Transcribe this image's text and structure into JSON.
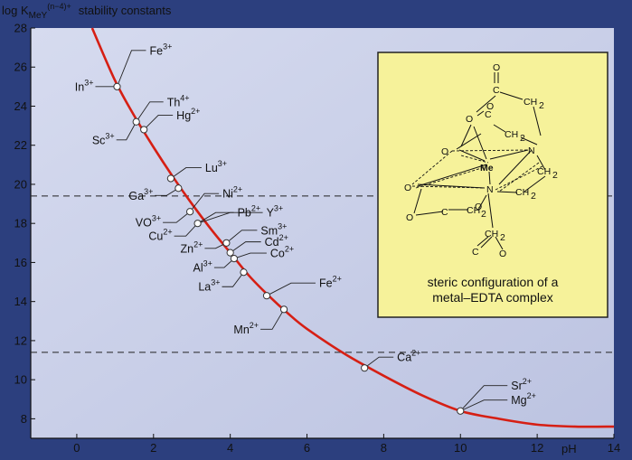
{
  "chart_data": {
    "type": "line",
    "title": "",
    "ylabel_main": "log K",
    "ylabel_sub": "MeY",
    "ylabel_sup": "(n−4)+",
    "ylabel_rest": "stability constants",
    "xlabel": "pH",
    "xlim": [
      -1.2,
      14
    ],
    "ylim": [
      7,
      28
    ],
    "x_ticks": [
      0,
      2,
      4,
      6,
      8,
      10,
      12,
      14
    ],
    "y_ticks": [
      8,
      10,
      12,
      14,
      16,
      18,
      20,
      22,
      24,
      26,
      28
    ],
    "reference_lines": [
      19.4,
      11.4
    ],
    "curve": {
      "x": [
        0.4,
        1.0,
        1.5,
        2.0,
        2.5,
        3.0,
        3.5,
        4.0,
        4.5,
        5.0,
        5.5,
        6.0,
        7.0,
        8.0,
        9.0,
        10.0,
        11.0,
        12.0,
        13.0,
        14.0
      ],
      "y": [
        28.0,
        25.3,
        23.5,
        21.9,
        20.4,
        19.0,
        17.7,
        16.5,
        15.3,
        14.3,
        13.4,
        12.6,
        11.3,
        10.2,
        9.2,
        8.4,
        8.0,
        7.7,
        7.6,
        7.6
      ]
    },
    "points": [
      {
        "label": "Fe",
        "charge": "3+",
        "x": 1.05,
        "y": 25.0
      },
      {
        "label": "In",
        "charge": "3+",
        "x": 1.05,
        "y": 25.0
      },
      {
        "label": "Th",
        "charge": "4+",
        "x": 1.55,
        "y": 23.2
      },
      {
        "label": "Hg",
        "charge": "2+",
        "x": 1.75,
        "y": 22.8
      },
      {
        "label": "Sc",
        "charge": "3+",
        "x": 1.55,
        "y": 23.2
      },
      {
        "label": "Lu",
        "charge": "3+",
        "x": 2.45,
        "y": 20.3
      },
      {
        "label": "Ga",
        "charge": "3+",
        "x": 2.65,
        "y": 19.8
      },
      {
        "label": "Ni",
        "charge": "2+",
        "x": 2.95,
        "y": 18.6
      },
      {
        "label": "Pb",
        "charge": "2+",
        "x": 3.15,
        "y": 18.0
      },
      {
        "label": "Y",
        "charge": "3+",
        "x": 3.15,
        "y": 18.0
      },
      {
        "label": "VO",
        "charge": "3+",
        "x": 2.95,
        "y": 18.6
      },
      {
        "label": "Cu",
        "charge": "2+",
        "x": 3.15,
        "y": 18.0
      },
      {
        "label": "Sm",
        "charge": "3+",
        "x": 3.9,
        "y": 17.0
      },
      {
        "label": "Cd",
        "charge": "2+",
        "x": 4.0,
        "y": 16.5
      },
      {
        "label": "Zn",
        "charge": "2+",
        "x": 3.9,
        "y": 17.0
      },
      {
        "label": "Co",
        "charge": "2+",
        "x": 4.1,
        "y": 16.2
      },
      {
        "label": "Al",
        "charge": "3+",
        "x": 4.1,
        "y": 16.2
      },
      {
        "label": "La",
        "charge": "3+",
        "x": 4.35,
        "y": 15.5
      },
      {
        "label": "Fe",
        "charge": "2+",
        "x": 4.95,
        "y": 14.3
      },
      {
        "label": "Mn",
        "charge": "2+",
        "x": 5.4,
        "y": 13.6
      },
      {
        "label": "Ca",
        "charge": "2+",
        "x": 7.5,
        "y": 10.6
      },
      {
        "label": "Sr",
        "charge": "2+",
        "x": 10.0,
        "y": 8.4
      },
      {
        "label": "Mg",
        "charge": "2+",
        "x": 10.0,
        "y": 8.4
      }
    ],
    "label_sides": {
      "left": [
        "In",
        "Sc",
        "Ga",
        "VO",
        "Cu",
        "Zn",
        "Al",
        "La",
        "Mn"
      ]
    },
    "colors": {
      "curve": "#d61f14",
      "background": "#2c3f7e",
      "plot_area": "#c9cfe8",
      "inset": "#f6f29a",
      "inset_border": "#222222",
      "text": "#111111"
    }
  },
  "inset": {
    "caption_line1": "steric configuration of a",
    "caption_line2": "metal–EDTA complex",
    "atoms": {
      "me": "Me",
      "n1": "N",
      "n2": "N",
      "o1": "O",
      "o2": "O",
      "o3": "O",
      "o4": "O",
      "c1": "C",
      "c2": "C",
      "c3": "C",
      "c4": "C",
      "o_top": "O",
      "o_mid": "O",
      "o_left": "O",
      "o_bottom": "O",
      "ch2_1": "CH",
      "ch2_2": "CH",
      "ch2_3": "CH",
      "ch2_4": "CH",
      "ch2_5": "CH",
      "ch2_6": "CH",
      "sub2": "2"
    }
  }
}
